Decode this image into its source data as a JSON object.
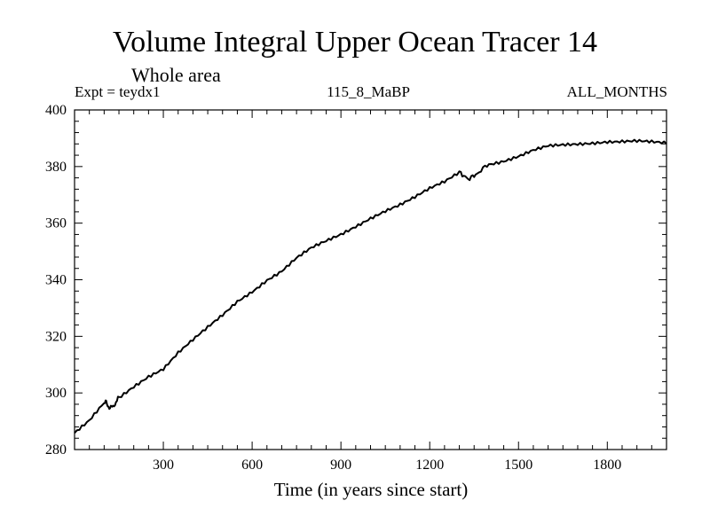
{
  "chart_data": {
    "type": "line",
    "title": "Volume Integral Upper Ocean Tracer 14",
    "subtitle": "Whole area",
    "expt_label": "Expt = teydx1",
    "run_label": "115_8_MaBP",
    "months_label": "ALL_MONTHS",
    "xlabel": "Time (in years since start)",
    "ylabel": "",
    "xlim": [
      0,
      2000
    ],
    "ylim": [
      280,
      400
    ],
    "x_ticks": [
      300,
      600,
      900,
      1200,
      1500,
      1800
    ],
    "y_ticks": [
      280,
      300,
      320,
      340,
      360,
      380,
      400
    ],
    "grid": false,
    "series": [
      {
        "name": "Tracer 14",
        "color": "#000000",
        "x": [
          0,
          50,
          100,
          105,
          115,
          130,
          150,
          200,
          250,
          300,
          350,
          400,
          450,
          500,
          550,
          600,
          650,
          700,
          750,
          800,
          850,
          900,
          950,
          1000,
          1050,
          1100,
          1150,
          1200,
          1250,
          1300,
          1330,
          1360,
          1400,
          1450,
          1500,
          1550,
          1600,
          1650,
          1700,
          1750,
          1800,
          1850,
          1900,
          1950,
          2000
        ],
        "values": [
          285.5,
          290,
          296.5,
          296.8,
          295,
          295,
          298.5,
          302.5,
          306,
          308.5,
          314,
          318.5,
          323,
          327.5,
          332.5,
          336,
          340,
          343,
          347.5,
          351,
          353.5,
          356,
          359,
          362,
          364.5,
          366.5,
          369,
          372,
          374.5,
          378,
          375.5,
          377.5,
          381,
          382,
          383.5,
          385.5,
          387,
          387.5,
          388,
          388.5,
          389,
          389,
          389,
          388.5,
          388
        ]
      }
    ]
  }
}
